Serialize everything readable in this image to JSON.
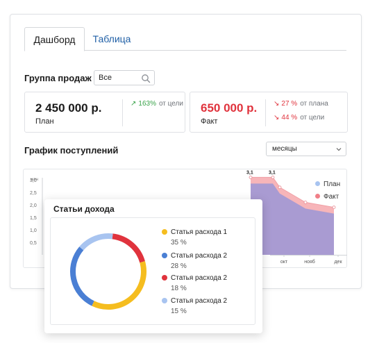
{
  "tabs": [
    {
      "label": "Дашборд",
      "active": true
    },
    {
      "label": "Таблица",
      "active": false
    }
  ],
  "filter": {
    "label": "Группа продаж",
    "search_value": "Все"
  },
  "kpi": {
    "plan": {
      "value": "2 450 000 р.",
      "caption": "План",
      "deltas": [
        {
          "arrow": "↗",
          "pct": "163%",
          "note": "от цели",
          "color": "#3aa34a"
        }
      ]
    },
    "fact": {
      "value": "650 000 р.",
      "caption": "Факт",
      "value_color": "#e0333d",
      "deltas": [
        {
          "arrow": "↘",
          "pct": "27 %",
          "note": "от плана",
          "color": "#e0333d"
        },
        {
          "arrow": "↘",
          "pct": "44 %",
          "note": "от цели",
          "color": "#e0333d"
        }
      ]
    }
  },
  "chart_section": {
    "title": "График поступлений",
    "period_select": "месяцы"
  },
  "chart_data": [
    {
      "type": "area",
      "ylabel": "млн",
      "yticks": [
        "3,0",
        "2,5",
        "2,0",
        "1,5",
        "1,0",
        "0,5"
      ],
      "categories": [
        "окт",
        "нояб",
        "дек"
      ],
      "series": [
        {
          "name": "План",
          "color": "#a8c4f0",
          "points": [
            {
              "x": "",
              "y": 3.1,
              "label": "3,1"
            },
            {
              "x": "",
              "y": 3.1,
              "label": "3,1"
            },
            {
              "x": "окт",
              "y": 2.7
            },
            {
              "x": "нояб",
              "y": 2.1
            },
            {
              "x": "дек",
              "y": 1.9
            }
          ]
        },
        {
          "name": "Факт",
          "color": "#f07f88",
          "points": [
            {
              "x": "",
              "y": 3.1
            },
            {
              "x": "",
              "y": 3.1
            },
            {
              "x": "окт",
              "y": 2.7
            },
            {
              "x": "нояб",
              "y": 2.1
            },
            {
              "x": "дек",
              "y": 1.9
            }
          ]
        }
      ],
      "legend_position": "top-right"
    },
    {
      "type": "pie",
      "title": "Статьи дохода",
      "slices": [
        {
          "label": "Статья расхода 1",
          "percent_label": "35 %",
          "value": 35,
          "color": "#f5bd1f"
        },
        {
          "label": "Статья расхода 2",
          "percent_label": "28 %",
          "value": 28,
          "color": "#4a7fd4"
        },
        {
          "label": "Статья расхода 2",
          "percent_label": "18 %",
          "value": 18,
          "color": "#e0333d"
        },
        {
          "label": "Статья расхода 2",
          "percent_label": "15 %",
          "value": 15,
          "color": "#a8c4f0"
        }
      ]
    }
  ],
  "icons": {
    "search": "search-icon",
    "select": "chevron-down-icon"
  }
}
